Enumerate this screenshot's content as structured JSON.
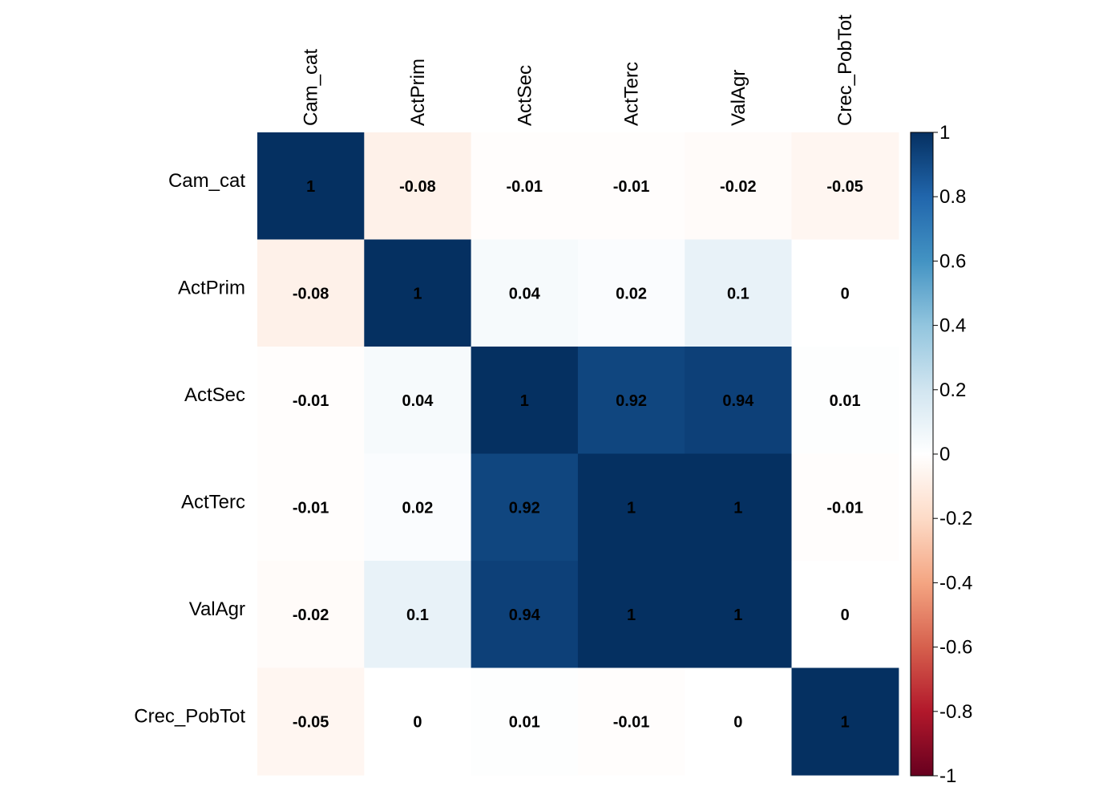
{
  "chart_data": {
    "type": "heatmap",
    "title": "",
    "variables": [
      "Cam_cat",
      "ActPrim",
      "ActSec",
      "ActTerc",
      "ValAgr",
      "Crec_PobTot"
    ],
    "matrix": [
      [
        1,
        -0.08,
        -0.01,
        -0.01,
        -0.02,
        -0.05
      ],
      [
        -0.08,
        1,
        0.04,
        0.02,
        0.1,
        0
      ],
      [
        -0.01,
        0.04,
        1,
        0.92,
        0.94,
        0.01
      ],
      [
        -0.01,
        0.02,
        0.92,
        1,
        1,
        -0.01
      ],
      [
        -0.02,
        0.1,
        0.94,
        1,
        1,
        0
      ],
      [
        -0.05,
        0,
        0.01,
        -0.01,
        0,
        1
      ]
    ],
    "cell_labels": [
      [
        "1",
        "-0.08",
        "-0.01",
        "-0.01",
        "-0.02",
        "-0.05"
      ],
      [
        "-0.08",
        "1",
        "0.04",
        "0.02",
        "0.1",
        "0"
      ],
      [
        "-0.01",
        "0.04",
        "1",
        "0.92",
        "0.94",
        "0.01"
      ],
      [
        "-0.01",
        "0.02",
        "0.92",
        "1",
        "1",
        "-0.01"
      ],
      [
        "-0.02",
        "0.1",
        "0.94",
        "1",
        "1",
        "0"
      ],
      [
        "-0.05",
        "0",
        "0.01",
        "-0.01",
        "0",
        "1"
      ]
    ],
    "colorbar": {
      "range": [
        -1,
        1
      ],
      "tick_values": [
        1,
        0.8,
        0.6,
        0.4,
        0.2,
        0,
        -0.2,
        -0.4,
        -0.6,
        -0.8,
        -1
      ],
      "tick_labels": [
        "1",
        "0.8",
        "0.6",
        "0.4",
        "0.2",
        "0",
        "-0.2",
        "-0.4",
        "-0.6",
        "-0.8",
        "-1"
      ],
      "colors": [
        "#67001F",
        "#B2182B",
        "#D6604D",
        "#F4A582",
        "#FDDBC7",
        "#FFFFFF",
        "#D1E5F0",
        "#92C5DE",
        "#4393C3",
        "#2166AC",
        "#053061"
      ]
    },
    "legend": "right"
  }
}
